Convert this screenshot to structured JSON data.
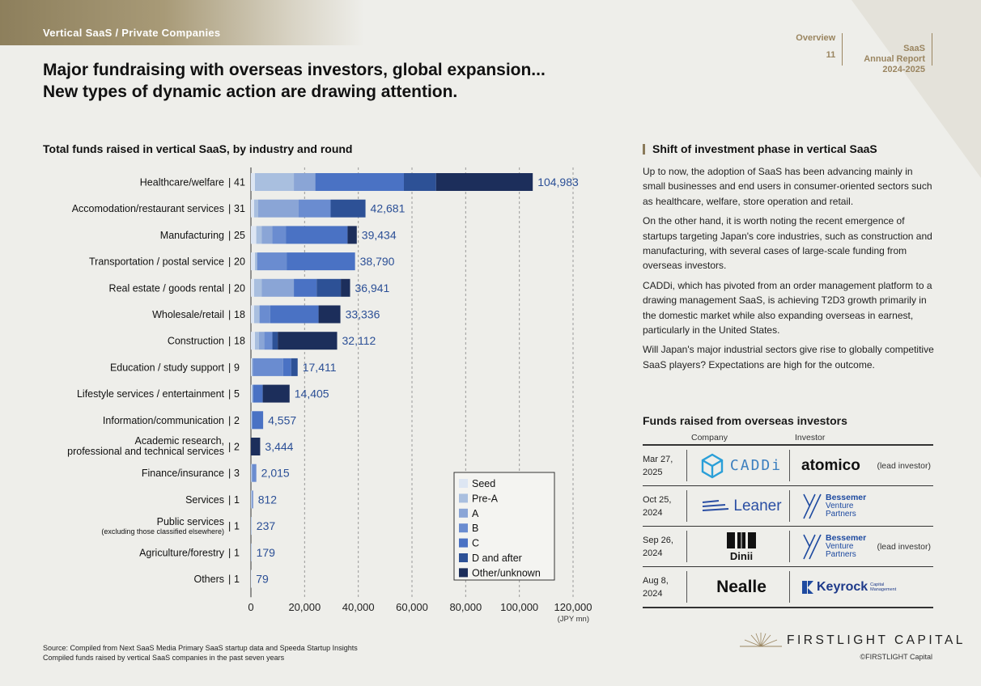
{
  "header": {
    "tag": "Vertical SaaS / Private Companies",
    "nav": [
      {
        "label": "Overview",
        "sub": "11"
      },
      {
        "label": "SaaS\nAnnual Report\n2024-2025",
        "sub": ""
      }
    ],
    "title_line1": "Major fundraising with overseas investors, global expansion...",
    "title_line2": "New types of dynamic action are drawing attention."
  },
  "colors": {
    "seed": "#dde6f3",
    "pre_a": "#a9bfdf",
    "a": "#8aa5d6",
    "b": "#6a8cd0",
    "c": "#4a72c4",
    "d_after": "#2d5196",
    "other": "#1c2e5b",
    "value_text": "#2b4f96"
  },
  "chart_data": {
    "type": "bar",
    "orientation": "horizontal",
    "stacked": true,
    "title": "Total funds raised in vertical SaaS, by industry and round",
    "unit_label": "(JPY mn)",
    "xlim": [
      0,
      120000
    ],
    "xticks": [
      "0",
      "20,000",
      "40,000",
      "60,000",
      "80,000",
      "100,000",
      "120,000"
    ],
    "grid": "vertical dashed",
    "legend_position": "bottom-right",
    "categories": [
      {
        "name": "Healthcare/welfare",
        "count": "41",
        "total": 104983,
        "label": "104,983"
      },
      {
        "name": "Accomodation/restaurant services",
        "count": "31",
        "total": 42681,
        "label": "42,681"
      },
      {
        "name": "Manufacturing",
        "count": "25",
        "total": 39434,
        "label": "39,434"
      },
      {
        "name": "Transportation / postal service",
        "count": "20",
        "total": 38790,
        "label": "38,790"
      },
      {
        "name": "Real estate / goods rental",
        "count": "20",
        "total": 36941,
        "label": "36,941"
      },
      {
        "name": "Wholesale/retail",
        "count": "18",
        "total": 33336,
        "label": "33,336"
      },
      {
        "name": "Construction",
        "count": "18",
        "total": 32112,
        "label": "32,112"
      },
      {
        "name": "Education / study support",
        "count": "9",
        "total": 17411,
        "label": "17,411"
      },
      {
        "name": "Lifestyle services / entertainment",
        "count": "5",
        "total": 14405,
        "label": "14,405"
      },
      {
        "name": "Information/communication",
        "count": "2",
        "total": 4557,
        "label": "4,557"
      },
      {
        "name": "Academic research,\nprofessional and technical services",
        "count": "2",
        "total": 3444,
        "label": "3,444"
      },
      {
        "name": "Finance/insurance",
        "count": "3",
        "total": 2015,
        "label": "2,015"
      },
      {
        "name": "Services",
        "count": "1",
        "total": 812,
        "label": "812"
      },
      {
        "name": "Public services",
        "subname": "(excluding those classified elsewhere)",
        "count": "1",
        "total": 237,
        "label": "237"
      },
      {
        "name": "Agriculture/forestry",
        "count": "1",
        "total": 179,
        "label": "179"
      },
      {
        "name": "Others",
        "count": "1",
        "total": 79,
        "label": "79"
      }
    ],
    "series": [
      {
        "name": "Seed",
        "color": "#dde6f3",
        "values": [
          1500,
          1200,
          2000,
          1500,
          1200,
          1200,
          1500,
          300,
          300,
          100,
          0,
          100,
          100,
          0,
          0,
          79
        ]
      },
      {
        "name": "Pre-A",
        "color": "#a9bfdf",
        "values": [
          14500,
          1500,
          2000,
          800,
          2800,
          2000,
          1500,
          300,
          300,
          200,
          0,
          200,
          200,
          237,
          179,
          0
        ]
      },
      {
        "name": "A",
        "color": "#8aa5d6",
        "values": [
          8000,
          15000,
          4000,
          0,
          12000,
          0,
          2000,
          200,
          300,
          200,
          0,
          300,
          300,
          0,
          0,
          0
        ]
      },
      {
        "name": "B",
        "color": "#6a8cd0",
        "values": [
          0,
          12000,
          5000,
          11000,
          0,
          4000,
          3000,
          11200,
          0,
          0,
          0,
          1415,
          212,
          0,
          0,
          0
        ]
      },
      {
        "name": "C",
        "color": "#4a72c4",
        "values": [
          32983,
          0,
          23000,
          25490,
          8500,
          18000,
          0,
          3000,
          3500,
          4057,
          0,
          0,
          0,
          0,
          0,
          0
        ]
      },
      {
        "name": "D and after",
        "color": "#2d5196",
        "values": [
          12000,
          12981,
          0,
          0,
          9000,
          0,
          2000,
          2411,
          0,
          0,
          0,
          0,
          0,
          0,
          0,
          0
        ]
      },
      {
        "name": "Other/unknown",
        "color": "#1c2e5b",
        "values": [
          36000,
          0,
          3434,
          0,
          3441,
          8136,
          22112,
          0,
          10005,
          0,
          3444,
          0,
          0,
          0,
          0,
          0
        ]
      }
    ]
  },
  "right": {
    "title": "Shift of investment phase in vertical SaaS",
    "paragraphs": [
      "Up to now, the adoption of SaaS has been advancing mainly in small businesses and end users in consumer-oriented sectors such as healthcare, welfare, store operation and retail.",
      "On the other hand, it is worth noting the recent emergence of startups targeting Japan's core industries, such as construction and manufacturing, with several cases of large-scale funding from overseas investors.",
      "CADDi, which has pivoted from an order management platform to a drawing management SaaS, is achieving T2D3 growth primarily in the domestic market while also expanding overseas in earnest, particularly in the United States.",
      "Will Japan's major industrial sectors give rise to globally competitive SaaS players? Expectations are high for the outcome."
    ]
  },
  "overseas": {
    "title": "Funds raised from overseas investors",
    "col_company": "Company",
    "col_investor": "Investor",
    "rows": [
      {
        "date": "Mar 27,\n2025",
        "company": "CADDi",
        "investor": "atomico",
        "lead": "(lead investor)",
        "company_icon": "cube-logo-icon"
      },
      {
        "date": "Oct 25,\n2024",
        "company": "Leaner",
        "investor_l1": "Bessemer",
        "investor_l2": "Venture",
        "investor_l3": "Partners",
        "lead": "",
        "company_icon": "lines-logo-icon"
      },
      {
        "date": "Sep 26,\n2024",
        "company": "Dinii",
        "investor_l1": "Bessemer",
        "investor_l2": "Venture",
        "investor_l3": "Partners",
        "lead": "(lead investor)",
        "company_icon": "blocks-logo-icon"
      },
      {
        "date": "Aug 8,\n2024",
        "company": "Nealle",
        "investor": "Keyrock",
        "investor_sub": "Capital\nManagement",
        "lead": ""
      }
    ]
  },
  "footer": {
    "source_line1": "Source: Compiled from Next SaaS Media Primary SaaS startup data and Speeda Startup Insights",
    "source_line2": "Compiled funds raised by vertical SaaS companies in the past seven years",
    "brand": "FIRSTLIGHT CAPITAL",
    "copyright": "©FIRSTLIGHT Capital"
  }
}
